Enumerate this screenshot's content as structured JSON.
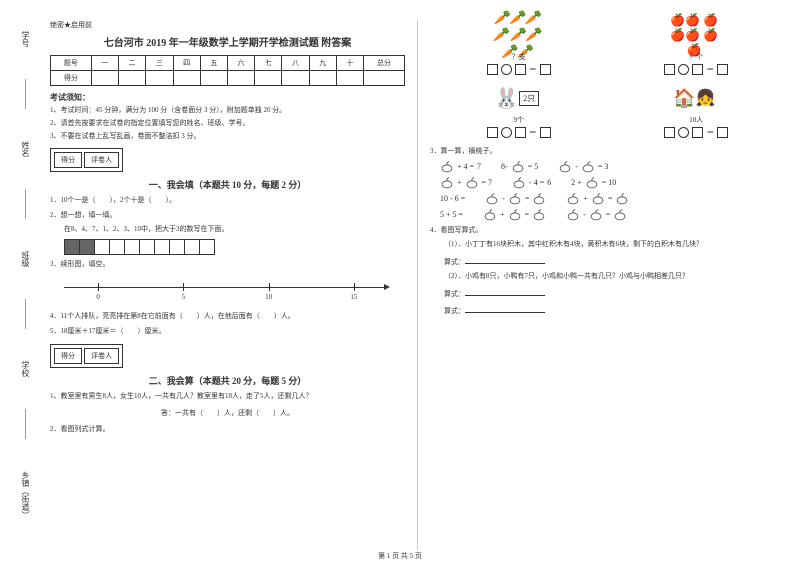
{
  "margin": {
    "items": [
      "学号",
      "姓名",
      "班级",
      "学校",
      "乡镇（街道）"
    ],
    "markers": [
      "密",
      "内",
      "线",
      "封",
      "答"
    ]
  },
  "header": {
    "secret": "绝密★启用前"
  },
  "title": "七台河市 2019 年一年级数学上学期开学检测试题 附答案",
  "score_header": [
    "题号",
    "一",
    "二",
    "三",
    "四",
    "五",
    "六",
    "七",
    "八",
    "九",
    "十",
    "总分"
  ],
  "score_row_label": "得分",
  "notice": {
    "title": "考试须知：",
    "items": [
      "1、考试时间：45 分钟，满分为 100 分（含卷面分 3 分），附加题单独 20 分。",
      "2、请首先按要求在试卷的指定位置填写您的姓名、班级、学号。",
      "3、不要在试卷上乱写乱画，卷面不整洁扣 3 分。"
    ]
  },
  "section_box": {
    "score": "得分",
    "grader": "评卷人"
  },
  "section1": {
    "title": "一、我会填（本题共 10 分，每题 2 分）",
    "q1": "1．10个一是（　　），2个十是（　　）。",
    "q2": "2．想一想，填一填。",
    "q2_sub": "在8、4、7、1、2、3、10中，把大于3的数写在下面。",
    "q3": "3．续形图，填空。",
    "q4": "4．11个人排队，亮亮排在第8在它前面有（　　）人，在他后面有（　　）人。",
    "q5": "5．18厘米＋17厘米＝（　　）厘米。"
  },
  "number_line": {
    "ticks": [
      0,
      5,
      10,
      15
    ],
    "positions": [
      10,
      35,
      60,
      85
    ]
  },
  "section2": {
    "title": "二、我会算（本题共 20 分，每题 5 分）",
    "q1": "1、教室里有男生8人，女生10人，一共有几人？教室里有18人，走了5人，还剩几人？",
    "answer": "答：一共有（　　）人，还剩（　　）人。",
    "q2": "2．看图列式计算。"
  },
  "pics": {
    "carrot_label": "？支",
    "apple_label": "？个",
    "bunny_label": "9个",
    "house_label": "10人",
    "eq": "＝"
  },
  "section3": {
    "title": "3．算一算，摘桃子。",
    "rows": [
      [
        {
          "l": "",
          "op": "+ 4 =",
          "r": "7"
        },
        {
          "l": "8-",
          "op": "",
          "r": "= 5"
        },
        {
          "l": "",
          "op": "-",
          "r": "= 3"
        }
      ],
      [
        {
          "l": "",
          "op": "+",
          "r": "= 7"
        },
        {
          "l": "",
          "op": "- 4 =",
          "r": "6"
        },
        {
          "l": "2 +",
          "op": "",
          "r": "= 10"
        }
      ],
      [
        {
          "l": "10 - 6 =",
          "op": "",
          "r": ""
        },
        {
          "l": "",
          "op": "-",
          "r": "="
        },
        {
          "l": "",
          "op": "+",
          "r": "="
        }
      ],
      [
        {
          "l": "5 + 5 =",
          "op": "",
          "r": ""
        },
        {
          "l": "",
          "op": "+",
          "r": "="
        },
        {
          "l": "",
          "op": "-",
          "r": "="
        }
      ]
    ]
  },
  "section4": {
    "title": "4．看图写算式。",
    "q1": "（1）．小丁丁有16块积木，其中红积木有4块，黄积木有6块，剩下的白积木有几块？",
    "q2": "（2）．小鸡有8只，小鸭有7只，小鸡和小鸭一共有几只？小鸡与小鸭相差几只？",
    "formula": "算式：",
    "result": "算式："
  },
  "footer": "第 1 页 共 5 页",
  "colors": {
    "text": "#333333",
    "border": "#333333",
    "bg": "#ffffff"
  }
}
